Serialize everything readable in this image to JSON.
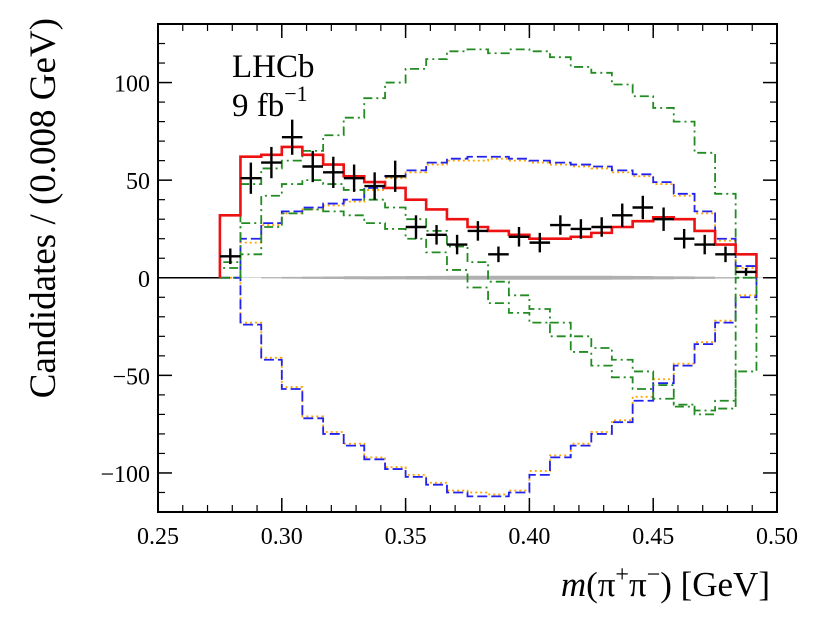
{
  "chart_data": {
    "type": "step-histogram",
    "experiment": "LHCb",
    "luminosity": {
      "value": "9 fb",
      "exponent": "−1"
    },
    "xlabel": {
      "m": "m",
      "open": "(π",
      "plus": "+",
      "mid": "π",
      "minus": "−",
      "close": ") [GeV]"
    },
    "ylabel": "Candidates / (0.008 GeV)",
    "xlim": [
      0.25,
      0.5
    ],
    "ylim": [
      -120,
      130
    ],
    "x_ticks": [
      0.25,
      0.3,
      0.35,
      0.4,
      0.45,
      0.5
    ],
    "x_tick_labels": [
      "0.25",
      "0.30",
      "0.35",
      "0.40",
      "0.45",
      "0.50"
    ],
    "y_ticks": [
      -100,
      -50,
      0,
      50,
      100
    ],
    "y_tick_labels": [
      "−100",
      "−50",
      "0",
      "50",
      "100"
    ],
    "bin_edges": [
      0.275,
      0.2833,
      0.2917,
      0.3,
      0.3083,
      0.3167,
      0.325,
      0.3333,
      0.3417,
      0.35,
      0.3583,
      0.3667,
      0.375,
      0.3833,
      0.3917,
      0.4,
      0.4083,
      0.4167,
      0.425,
      0.4333,
      0.4417,
      0.45,
      0.4583,
      0.4667,
      0.475,
      0.4833,
      0.4917
    ],
    "series": [
      {
        "name": "fit_total",
        "color": "#ee1111",
        "style": "solid",
        "values": [
          32,
          62,
          63,
          67,
          63,
          58,
          52,
          49,
          46,
          40,
          35,
          30,
          26,
          24,
          22,
          20,
          20,
          21,
          23,
          26,
          29,
          31,
          30,
          24,
          17,
          12
        ]
      },
      {
        "name": "component_green_upper",
        "color": "#228b22",
        "style": "dashdot",
        "values": [
          5,
          48,
          56,
          60,
          65,
          73,
          82,
          92,
          100,
          107,
          112,
          116,
          117,
          115,
          117,
          116,
          113,
          108,
          105,
          99,
          93,
          87,
          80,
          64,
          43,
          0
        ]
      },
      {
        "name": "component_green_lower",
        "color": "#228b22",
        "style": "dashdot",
        "values": [
          0,
          12,
          26,
          33,
          35,
          34,
          32,
          28,
          25,
          20,
          13,
          4,
          -5,
          -13,
          -18,
          -23,
          -30,
          -38,
          -45,
          -51,
          -57,
          -62,
          -65,
          -68,
          -63,
          0
        ]
      },
      {
        "name": "component_green_mid",
        "color": "#228b22",
        "style": "dashdot",
        "values": [
          8,
          28,
          42,
          48,
          50,
          48,
          45,
          40,
          36,
          30,
          24,
          16,
          8,
          -2,
          -9,
          -16,
          -23,
          -30,
          -36,
          -42,
          -48,
          -55,
          -66,
          -70,
          -67,
          -48
        ]
      },
      {
        "name": "component_blue_upper",
        "color": "#2222ee",
        "style": "dashed",
        "values": [
          0,
          20,
          28,
          34,
          36,
          38,
          40,
          46,
          52,
          55,
          59,
          61,
          62,
          62,
          61,
          60,
          59,
          58,
          57,
          55,
          53,
          49,
          43,
          34,
          20,
          6
        ]
      },
      {
        "name": "component_blue_lower",
        "color": "#2222ee",
        "style": "dashed",
        "values": [
          0,
          -24,
          -42,
          -57,
          -72,
          -80,
          -86,
          -93,
          -98,
          -102,
          -106,
          -110,
          -112,
          -112,
          -110,
          -101,
          -92,
          -86,
          -80,
          -74,
          -63,
          -54,
          -45,
          -34,
          -23,
          -10
        ]
      },
      {
        "name": "component_orange_upper",
        "color": "#ffa500",
        "style": "dotted",
        "values": [
          0,
          18,
          27,
          33,
          35,
          37,
          39,
          45,
          51,
          54,
          58,
          60,
          60,
          61,
          60,
          59,
          58,
          57,
          56,
          54,
          52,
          48,
          42,
          33,
          19,
          5
        ]
      },
      {
        "name": "component_orange_lower",
        "color": "#ffa500",
        "style": "dotted",
        "values": [
          0,
          -23,
          -41,
          -56,
          -71,
          -79,
          -85,
          -92,
          -97,
          -101,
          -105,
          -109,
          -110,
          -111,
          -109,
          -99,
          -91,
          -85,
          -79,
          -73,
          -61,
          -52,
          -44,
          -33,
          -22,
          -9
        ]
      }
    ],
    "data_points": {
      "x": [
        0.2792,
        0.2875,
        0.2958,
        0.3042,
        0.3125,
        0.3208,
        0.3292,
        0.3375,
        0.3458,
        0.3542,
        0.3625,
        0.3708,
        0.3792,
        0.3875,
        0.3958,
        0.4042,
        0.4125,
        0.4208,
        0.4292,
        0.4375,
        0.4458,
        0.4542,
        0.4625,
        0.4708,
        0.4792,
        0.4875
      ],
      "y": [
        11,
        51,
        59,
        72,
        57,
        54,
        51,
        47,
        52,
        26,
        22,
        17,
        24,
        12,
        21,
        18,
        27,
        25,
        26,
        32,
        36,
        30,
        20,
        17,
        12,
        3
      ],
      "yerr": [
        4,
        8,
        8,
        9,
        8,
        8,
        7,
        7,
        8,
        6,
        5,
        5,
        5,
        4,
        5,
        5,
        5,
        5,
        5,
        6,
        6,
        6,
        5,
        5,
        4,
        2
      ]
    },
    "background_band": {
      "name": "combinatorial",
      "color": "#b0b0b0",
      "values": [
        0,
        0.3,
        0.6,
        0.9,
        1.1,
        1.3,
        1.5,
        1.6,
        1.7,
        1.8,
        1.9,
        2.0,
        2.0,
        2.0,
        2.1,
        2.1,
        2.1,
        2.0,
        2.0,
        1.9,
        1.8,
        1.6,
        1.4,
        1.1,
        0.7,
        0.3
      ]
    }
  }
}
